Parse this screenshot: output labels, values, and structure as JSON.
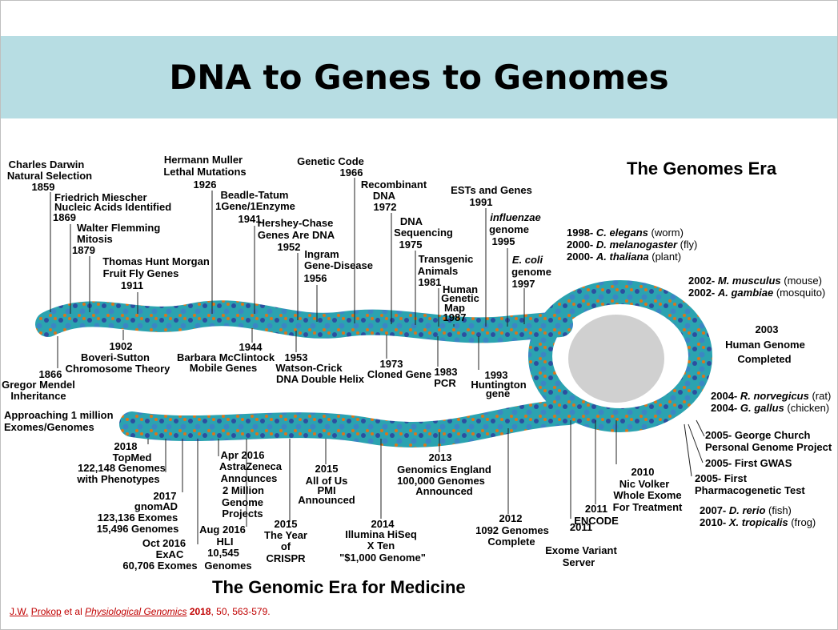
{
  "title": "DNA to Genes to Genomes",
  "eras": {
    "top": "The Genomes Era",
    "bottom": "The Genomic Era for Medicine"
  },
  "top_labels": {
    "darwin": [
      "Charles Darwin",
      "Natural Selection",
      "1859"
    ],
    "miescher": [
      "Friedrich Miescher",
      "Nucleic Acids Identified",
      "1869"
    ],
    "flemming": [
      "Walter Flemming",
      "Mitosis",
      "1879"
    ],
    "morgan": [
      "Thomas Hunt Morgan",
      "Fruit Fly Genes",
      "1911"
    ],
    "muller": [
      "Hermann Muller",
      "Lethal Mutations",
      "1926"
    ],
    "beadle": [
      "Beadle-Tatum",
      "1Gene/1Enzyme",
      "1941"
    ],
    "hershey": [
      "Hershey-Chase",
      "Genes Are DNA",
      "1952"
    ],
    "ingram": [
      "Ingram",
      "Gene-Disease",
      "1956"
    ],
    "code": [
      "Genetic Code",
      "1966"
    ],
    "recomb": [
      "Recombinant",
      "DNA",
      "1972"
    ],
    "seq": [
      "DNA",
      "Sequencing",
      "1975"
    ],
    "transgenic": [
      "Transgenic",
      "Animals",
      "1981"
    ],
    "humanmap": [
      "Human",
      "Genetic",
      "Map",
      "1987"
    ],
    "ests": [
      "ESTs and Genes",
      "1991"
    ],
    "flu": [
      "influenzae",
      "genome",
      "1995"
    ],
    "ecoli": [
      "E. coli",
      "genome",
      "1997"
    ]
  },
  "below_labels": {
    "boveri": [
      "1902",
      "Boveri-Sutton",
      "Chromosome Theory"
    ],
    "mendel": [
      "1866",
      "Gregor Mendel",
      "Inheritance"
    ],
    "mcclintock": [
      "1944",
      "Barbara McClintock",
      "Mobile Genes"
    ],
    "watson": [
      "1953",
      "Watson-Crick",
      "DNA Double Helix"
    ],
    "cloned": [
      "1973",
      "Cloned Gene"
    ],
    "pcr": [
      "1983",
      "PCR"
    ],
    "huntington": [
      "1993",
      "Huntington",
      "gene"
    ]
  },
  "genomes_top": [
    {
      "year": "1998- ",
      "species": "C. elegans",
      "common": " (worm)"
    },
    {
      "year": "2000- ",
      "species": "D. melanogaster",
      "common": " (fly)"
    },
    {
      "year": "2000- ",
      "species": "A. thaliana",
      "common": " (plant)"
    }
  ],
  "genomes_mid": [
    {
      "year": "2002- ",
      "species": "M. musculus",
      "common": " (mouse)"
    },
    {
      "year": "2002- ",
      "species": "A. gambiae",
      "common": " (mosquito)"
    }
  ],
  "hgp": [
    "2003",
    "Human Genome",
    "Completed"
  ],
  "genomes_rat": [
    {
      "year": "2004- ",
      "species": "R. norvegicus",
      "common": " (rat)"
    },
    {
      "year": "2004- ",
      "species": "G. gallus",
      "common": " (chicken)"
    }
  ],
  "right_events": {
    "church": [
      "2005- George Church",
      "Personal Genome Project"
    ],
    "gwas": "2005- First GWAS",
    "pharma": [
      "2005- First",
      "Pharmacogenetic Test"
    ]
  },
  "genomes_fish": [
    {
      "year": "2007- ",
      "species": "D. rerio",
      "common": " (fish)"
    },
    {
      "year": "2010- ",
      "species": "X. tropicalis",
      "common": " (frog)"
    }
  ],
  "bottom_labels": {
    "exomes": [
      "Approaching 1 million",
      "Exomes/Genomes"
    ],
    "topmed": [
      "2018",
      "TopMed",
      "122,148 Genomes",
      "with Phenotypes"
    ],
    "gnomad": [
      "2017",
      "gnomAD",
      "123,136 Exomes",
      "15,496 Genomes"
    ],
    "exac": [
      "Oct 2016",
      "ExAC",
      "60,706 Exomes"
    ],
    "astra": [
      "Apr 2016",
      "AstraZeneca",
      "Announces",
      "2 Million",
      "Genome",
      "Projects"
    ],
    "hli": [
      "Aug 2016",
      "HLI",
      "10,545",
      "Genomes"
    ],
    "crispr": [
      "2015",
      "The Year",
      "of",
      "CRISPR"
    ],
    "allofus": [
      "2015",
      "All of Us",
      "PMI",
      "Announced"
    ],
    "illumina": [
      "2014",
      "Illumina HiSeq",
      "X Ten",
      "\"$1,000 Genome\""
    ],
    "gel": [
      "2013",
      "Genomics England",
      "100,000 Genomes",
      "Announced"
    ],
    "g1000": [
      "2012",
      "1092 Genomes",
      "Complete"
    ],
    "exomevar": [
      "2011",
      "Exome Variant",
      "Server"
    ],
    "encode": [
      "2011",
      "ENCODE"
    ],
    "volker": [
      "2010",
      "Nic Volker",
      "Whole Exome",
      "For Treatment"
    ]
  },
  "citation": {
    "author1": "J.W.",
    "author2": "Prokop",
    "etal": " et al  ",
    "journal": "Physiological Genomics",
    "year": "2018",
    "rest": ", 50, 563-579."
  },
  "colors": {
    "title_band": "#b7dde3",
    "helix_teal": "#2ba3b0",
    "helix_blue": "#2c4fa0",
    "helix_orange": "#d9761c",
    "protein_gray": "#bfbfbf",
    "citation": "#c00000"
  }
}
